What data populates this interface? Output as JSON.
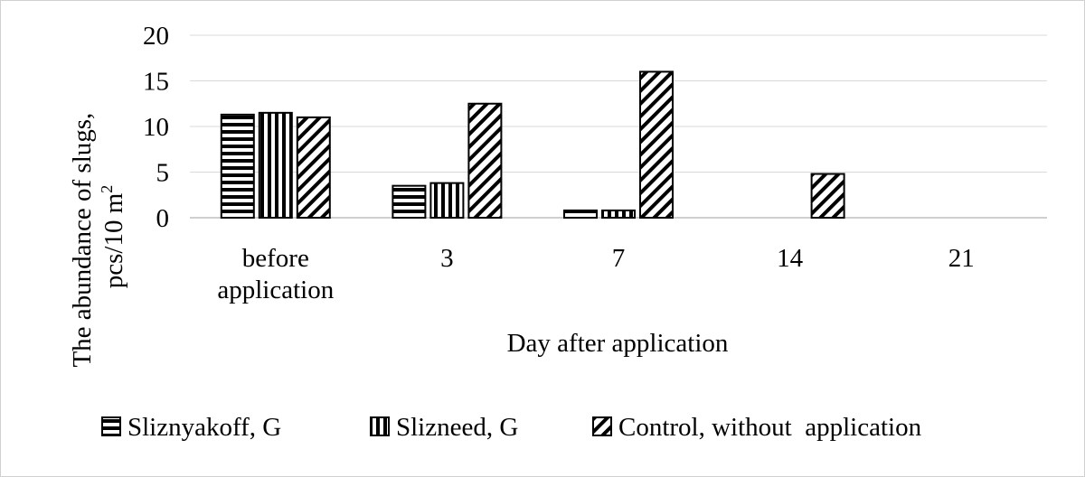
{
  "chart_data": {
    "type": "bar",
    "title": "",
    "xlabel": "Day after application",
    "ylabel": "The abundance of slugs, pcs/10 m²",
    "ylabel_line1": "The abundance of slugs,",
    "ylabel_line2": "pcs/10 m",
    "ylabel_sup": "2",
    "categories": [
      "before application",
      "3",
      "7",
      "14",
      "21"
    ],
    "category_lines": [
      [
        "before",
        "application"
      ],
      [
        "3"
      ],
      [
        "7"
      ],
      [
        "14"
      ],
      [
        "21"
      ]
    ],
    "ylim": [
      0,
      20
    ],
    "yticks": [
      0,
      5,
      10,
      15,
      20
    ],
    "grid": true,
    "legend_position": "bottom",
    "series": [
      {
        "name": "Sliznyakoff, G",
        "pattern": "horizontal-stripes",
        "values": [
          11.3,
          3.5,
          0.8,
          0,
          0
        ]
      },
      {
        "name": "Slizneed, G",
        "pattern": "vertical-stripes",
        "values": [
          11.5,
          3.8,
          0.8,
          0,
          0
        ]
      },
      {
        "name": "Control, without  application",
        "pattern": "diagonal-stripes",
        "values": [
          11.0,
          12.5,
          16.0,
          4.8,
          0
        ]
      }
    ],
    "colors": {
      "stroke": "#000000",
      "fill": "#ffffff",
      "grid": "#d9d9d9"
    }
  }
}
